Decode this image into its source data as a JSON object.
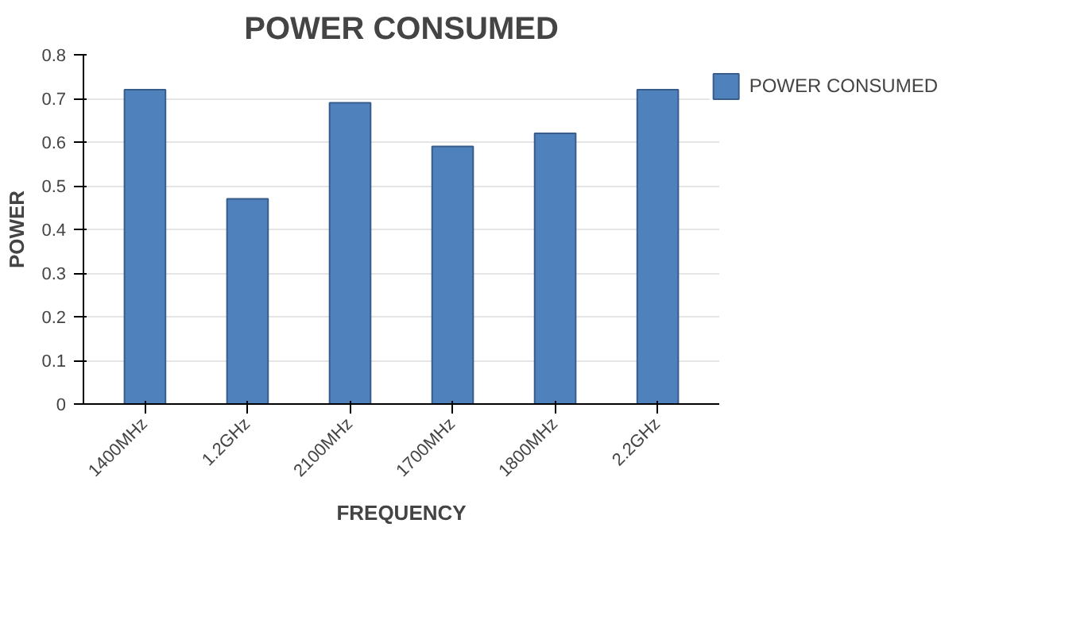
{
  "chart_data": {
    "type": "bar",
    "title": "POWER CONSUMED",
    "xlabel": "FREQUENCY",
    "ylabel": "POWER",
    "categories": [
      "1400MHz",
      "1.2GHz",
      "2100MHz",
      "1700MHz",
      "1800MHz",
      "2.2GHz"
    ],
    "series": [
      {
        "name": "POWER CONSUMED",
        "color": "#4f81bd",
        "values": [
          0.72,
          0.47,
          0.69,
          0.59,
          0.62,
          0.72
        ]
      }
    ],
    "ylim": [
      0,
      0.8
    ],
    "yticks": [
      0,
      0.1,
      0.2,
      0.3,
      0.4,
      0.5,
      0.6,
      0.7,
      0.8
    ],
    "grid": "y",
    "legend": "right"
  }
}
